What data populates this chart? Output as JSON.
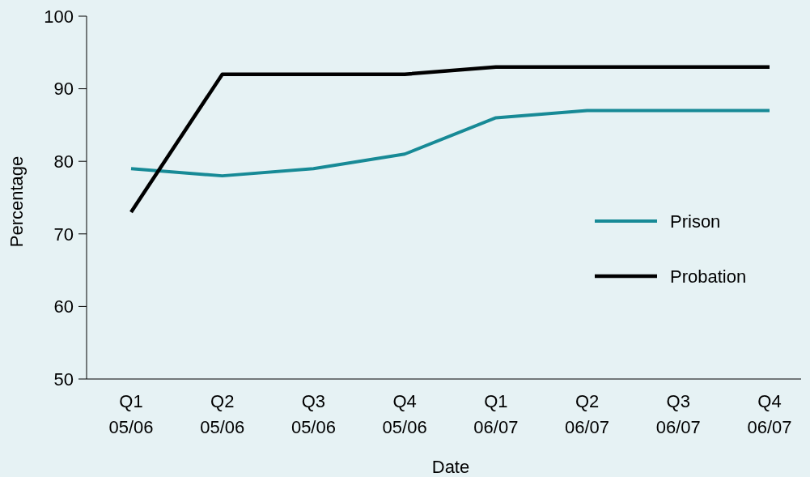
{
  "chart_data": {
    "type": "line",
    "xlabel": "Date",
    "ylabel": "Percentage",
    "categories": [
      "Q1 05/06",
      "Q2 05/06",
      "Q3 05/06",
      "Q4 05/06",
      "Q1 06/07",
      "Q2 06/07",
      "Q3 06/07",
      "Q4 06/07"
    ],
    "series": [
      {
        "name": "Prison",
        "color": "#178a96",
        "values": [
          79,
          78,
          79,
          81,
          86,
          87,
          87,
          87
        ]
      },
      {
        "name": "Probation",
        "color": "#000000",
        "values": [
          73,
          92,
          92,
          92,
          93,
          93,
          93,
          93
        ]
      }
    ],
    "ylim": [
      50,
      100
    ],
    "yticks": [
      50,
      60,
      70,
      80,
      90,
      100
    ],
    "grid": false,
    "legend": "right",
    "marker": "none",
    "line_style": "solid"
  }
}
